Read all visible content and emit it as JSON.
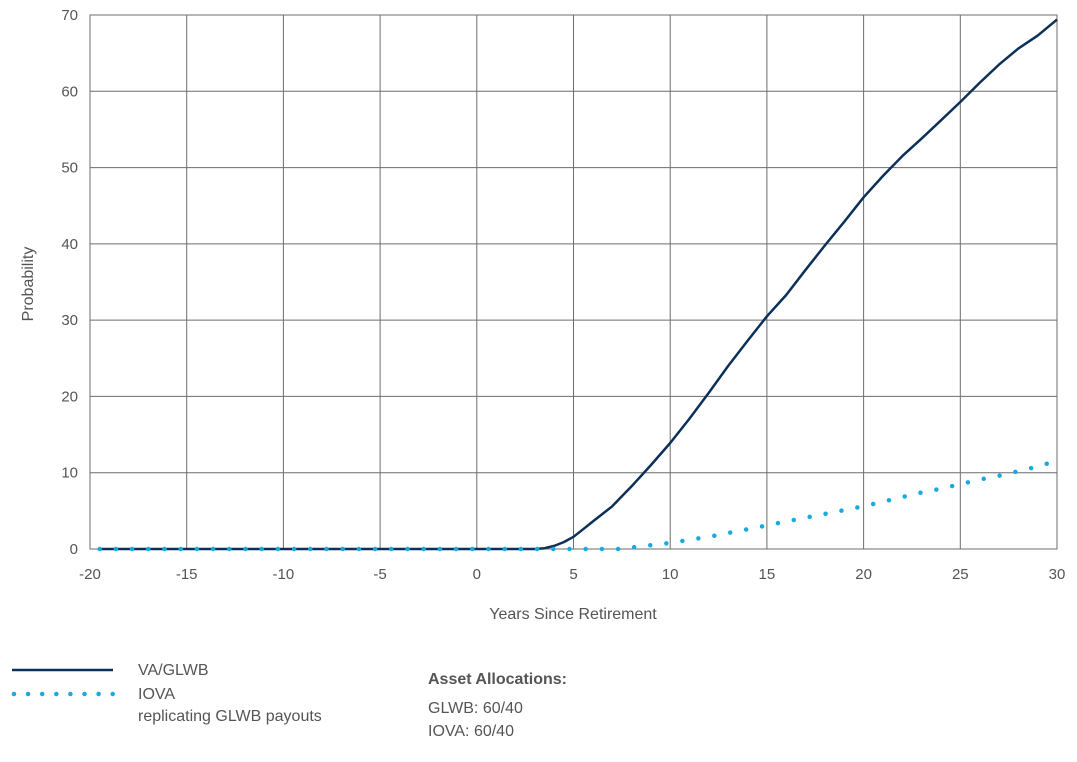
{
  "chart_data": {
    "type": "line",
    "xlabel": "Years Since Retirement",
    "ylabel": "Probability",
    "xlim": [
      -20,
      30
    ],
    "ylim": [
      0,
      70
    ],
    "x_ticks": [
      -20,
      -15,
      -10,
      -5,
      0,
      5,
      10,
      15,
      20,
      25,
      30
    ],
    "y_ticks": [
      0,
      10,
      20,
      30,
      40,
      50,
      60,
      70
    ],
    "grid": true,
    "series": [
      {
        "name": "VA/GLWB",
        "style": "solid",
        "color": "#0d3059",
        "x": [
          -19.5,
          -15,
          -10,
          -5,
          0,
          3,
          3.5,
          4,
          4.5,
          5,
          5.5,
          6,
          7,
          8,
          9,
          10,
          11,
          12,
          13,
          14,
          15,
          16,
          17,
          18,
          19,
          20,
          21,
          22,
          23,
          24,
          25,
          26,
          27,
          28,
          29,
          30
        ],
        "y": [
          0,
          0,
          0,
          0,
          0,
          0,
          0.1,
          0.4,
          0.9,
          1.6,
          2.6,
          3.6,
          5.6,
          8.2,
          11.0,
          13.9,
          17.1,
          20.5,
          24.0,
          27.3,
          30.5,
          33.3,
          36.6,
          39.8,
          42.9,
          46.1,
          48.9,
          51.5,
          53.8,
          56.2,
          58.6,
          61.1,
          63.5,
          65.6,
          67.3,
          69.4
        ]
      },
      {
        "name": "IOVA",
        "style": "dotted",
        "color": "#1aa9df",
        "x": [
          -19.5,
          -10,
          0,
          5,
          6,
          7,
          7.5,
          8,
          9,
          10,
          11,
          12,
          13,
          14,
          15,
          16,
          17,
          18,
          19,
          20,
          21,
          22,
          23,
          24,
          25,
          26,
          27,
          28,
          29,
          30
        ],
        "y": [
          0,
          0,
          0,
          0,
          0,
          0,
          0,
          0.2,
          0.5,
          0.8,
          1.2,
          1.6,
          2.1,
          2.6,
          3.1,
          3.6,
          4.1,
          4.6,
          5.1,
          5.6,
          6.2,
          6.8,
          7.4,
          7.9,
          8.5,
          9.1,
          9.6,
          10.2,
          10.8,
          11.6
        ]
      }
    ]
  },
  "legend": {
    "items": [
      {
        "label": "VA/GLWB",
        "sub": ""
      },
      {
        "label": "IOVA",
        "sub": "replicating GLWB payouts"
      }
    ]
  },
  "allocations": {
    "title": "Asset Allocations:",
    "lines": [
      "GLWB: 60/40",
      "IOVA: 60/40"
    ]
  }
}
